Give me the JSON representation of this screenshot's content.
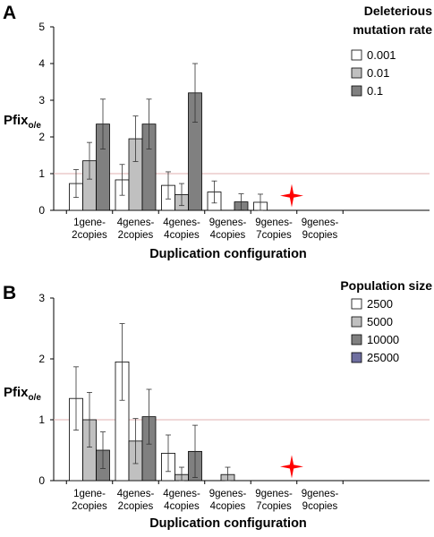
{
  "chart_data": [
    {
      "type": "bar",
      "panel": "A",
      "title": "Deleterious mutation rate",
      "title_lines": [
        "Deleterious",
        "mutation rate"
      ],
      "ylabel": "Pfix",
      "ylabel_sub": "o/e",
      "xlabel": "Duplication configuration",
      "ylim": [
        0,
        5
      ],
      "yticks": [
        0,
        1,
        2,
        3,
        4,
        5
      ],
      "reference_line": 1,
      "categories": [
        [
          "1gene-",
          "2copies"
        ],
        [
          "4genes-",
          "2copies"
        ],
        [
          "4genes-",
          "4copies"
        ],
        [
          "9genes-",
          "4copies"
        ],
        [
          "9genes-",
          "7copies"
        ],
        [
          "9genes-",
          "9copies"
        ]
      ],
      "series": [
        {
          "name": "0.001",
          "color": "#ffffff",
          "values": [
            0.73,
            0.83,
            0.68,
            0.5,
            0.22,
            null
          ],
          "errors": [
            0.38,
            0.42,
            0.37,
            0.3,
            0.22,
            null
          ]
        },
        {
          "name": "0.01",
          "color": "#c0c0c0",
          "values": [
            1.35,
            1.95,
            0.43,
            null,
            null,
            null
          ],
          "errors": [
            0.5,
            0.62,
            0.3,
            null,
            null,
            null
          ]
        },
        {
          "name": "0.1",
          "color": "#808080",
          "values": [
            2.35,
            2.35,
            3.2,
            0.23,
            null,
            null
          ],
          "errors": [
            0.68,
            0.68,
            0.8,
            0.22,
            null,
            null
          ]
        }
      ],
      "marker": {
        "category_index": 4,
        "value": 0.4,
        "color": "#ff0000",
        "shape": "four-pointed-star"
      },
      "legend": {
        "position": "right"
      }
    },
    {
      "type": "bar",
      "panel": "B",
      "title": "Population size",
      "title_lines": [
        "Population size"
      ],
      "ylabel": "Pfix",
      "ylabel_sub": "o/e",
      "xlabel": "Duplication configuration",
      "ylim": [
        0,
        3
      ],
      "yticks": [
        0,
        1,
        2,
        3
      ],
      "reference_line": 1,
      "categories": [
        [
          "1gene-",
          "2copies"
        ],
        [
          "4genes-",
          "2copies"
        ],
        [
          "4genes-",
          "4copies"
        ],
        [
          "9genes-",
          "4copies"
        ],
        [
          "9genes-",
          "7copies"
        ],
        [
          "9genes-",
          "9copies"
        ]
      ],
      "series": [
        {
          "name": "2500",
          "color": "#ffffff",
          "values": [
            1.35,
            1.95,
            0.45,
            null,
            null,
            null
          ],
          "errors": [
            0.52,
            0.63,
            0.3,
            null,
            null,
            null
          ]
        },
        {
          "name": "5000",
          "color": "#c0c0c0",
          "values": [
            1.0,
            0.65,
            0.1,
            0.1,
            null,
            null
          ],
          "errors": [
            0.45,
            0.37,
            0.12,
            0.12,
            null,
            null
          ]
        },
        {
          "name": "10000",
          "color": "#808080",
          "values": [
            0.5,
            1.05,
            0.48,
            null,
            null,
            null
          ],
          "errors": [
            0.3,
            0.45,
            0.43,
            null,
            null,
            null
          ]
        },
        {
          "name": "25000",
          "color": "#6f6fa0",
          "values": [
            null,
            null,
            null,
            null,
            null,
            null
          ],
          "errors": [
            null,
            null,
            null,
            null,
            null,
            null
          ]
        }
      ],
      "marker": {
        "category_index": 4,
        "value": 0.23,
        "color": "#ff0000",
        "shape": "four-pointed-star"
      },
      "legend": {
        "position": "right"
      }
    }
  ]
}
